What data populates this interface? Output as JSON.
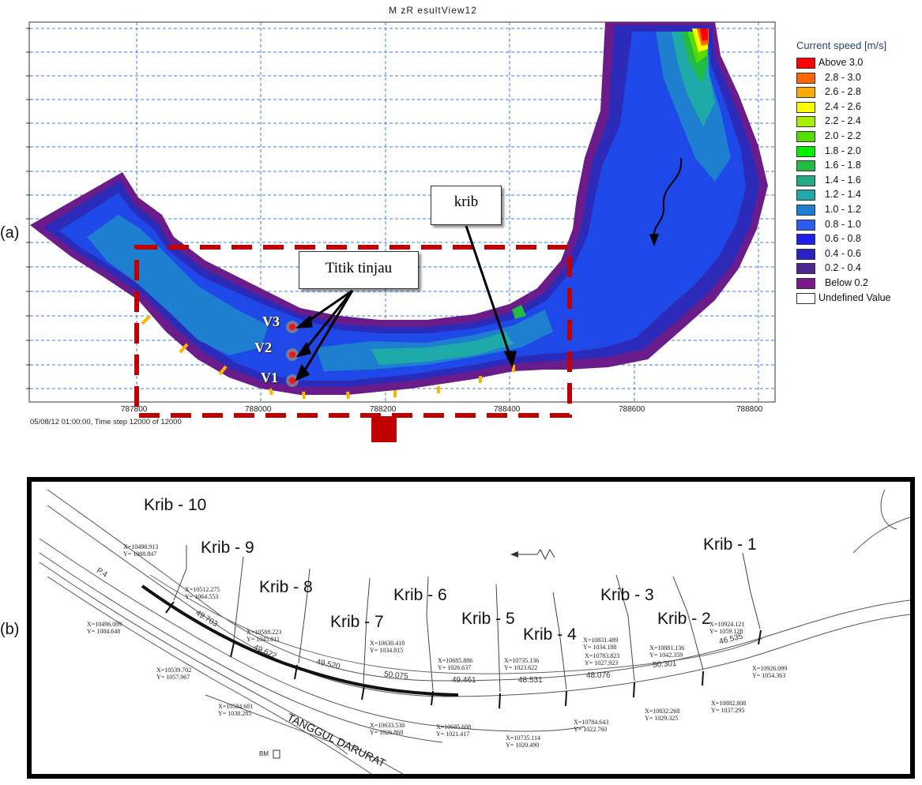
{
  "panel_a": {
    "label": "(a)",
    "title": "M zR esultView12",
    "timestep": "05/08/12 01:00:00, Time step 12000 of 12000",
    "x_ticks": [
      "787800",
      "788000",
      "788200",
      "788400",
      "788600",
      "788800"
    ],
    "legend": {
      "title": "Current speed [m/s]",
      "items": [
        {
          "label": "Above 3.0",
          "color": "#ff0000"
        },
        {
          "label": "2.8 - 3.0",
          "color": "#ff6600"
        },
        {
          "label": "2.6 - 2.8",
          "color": "#ffaa00"
        },
        {
          "label": "2.4 - 2.6",
          "color": "#ffff00"
        },
        {
          "label": "2.2 - 2.4",
          "color": "#aaee00"
        },
        {
          "label": "2.0 - 2.2",
          "color": "#55dd00"
        },
        {
          "label": "1.8 - 2.0",
          "color": "#00ee00"
        },
        {
          "label": "1.6 - 1.8",
          "color": "#22bb44"
        },
        {
          "label": "1.4 - 1.6",
          "color": "#22aa88"
        },
        {
          "label": "1.2 - 1.4",
          "color": "#1faaaa"
        },
        {
          "label": "1.0 - 1.2",
          "color": "#1e7fd0"
        },
        {
          "label": "0.8 - 1.0",
          "color": "#2a5cf0"
        },
        {
          "label": "0.6 - 0.8",
          "color": "#1e1ef0"
        },
        {
          "label": "0.4 - 0.6",
          "color": "#2a22c0"
        },
        {
          "label": "0.2 - 0.4",
          "color": "#4a2890"
        },
        {
          "label": "Below 0.2",
          "color": "#7a1a88"
        },
        {
          "label": "Undefined Value",
          "color": "#ffffff"
        }
      ]
    },
    "callouts": {
      "krib": "krib",
      "titik": "Titik tinjau"
    },
    "points": [
      "V3",
      "V2",
      "V1"
    ]
  },
  "panel_b": {
    "label": "(b)",
    "krib_labels": [
      "Krib - 10",
      "Krib - 9",
      "Krib - 8",
      "Krib - 7",
      "Krib - 6",
      "Krib - 5",
      "Krib - 4",
      "Krib - 3",
      "Krib - 2",
      "Krib - 1"
    ],
    "distances": [
      "49.703",
      "49.622",
      "49.520",
      "50.075",
      "49.461",
      "48.531",
      "48.076",
      "50.301",
      "46.535"
    ],
    "coords_top": [
      {
        "x": "X=10498.913",
        "y": "Y= 1088.847"
      },
      {
        "x": "X=10512.275",
        "y": "Y= 1064.553"
      },
      {
        "x": "X=10588.223",
        "y": "Y= 1045.811"
      },
      {
        "x": "X=10630.418",
        "y": "Y= 1034.815"
      },
      {
        "x": "X=10685.886",
        "y": "Y= 1026.637"
      },
      {
        "x": "X=10735.136",
        "y": "Y= 1023.622"
      },
      {
        "x": "X=10783.823",
        "y": "Y= 1027.923"
      },
      {
        "x": "X=10831.489",
        "y": "Y= 1034.188"
      },
      {
        "x": "X=10881.136",
        "y": "Y= 1042.359"
      },
      {
        "x": "X=10924.121",
        "y": "Y= 1059.128"
      }
    ],
    "coords_bottom": [
      {
        "x": "X=10496.009",
        "y": "Y= 1084.648"
      },
      {
        "x": "X=10539.702",
        "y": "Y= 1057.967"
      },
      {
        "x": "X=10584.681",
        "y": "Y= 1038.285"
      },
      {
        "x": "X=10633.530",
        "y": "Y= 1026.868"
      },
      {
        "x": "X=10685.608",
        "y": "Y= 1021.417"
      },
      {
        "x": "X=10735.114",
        "y": "Y= 1020.490"
      },
      {
        "x": "X=10784.643",
        "y": "Y= 1022.760"
      },
      {
        "x": "X=10832.268",
        "y": "Y= 1029.325"
      },
      {
        "x": "X=10882.808",
        "y": "Y= 1037.295"
      },
      {
        "x": "X=10926.099",
        "y": "Y= 1054.363"
      }
    ],
    "road_label": "TANGGUL DARURAT",
    "station_label": "P.4",
    "bm_label": "BM"
  }
}
